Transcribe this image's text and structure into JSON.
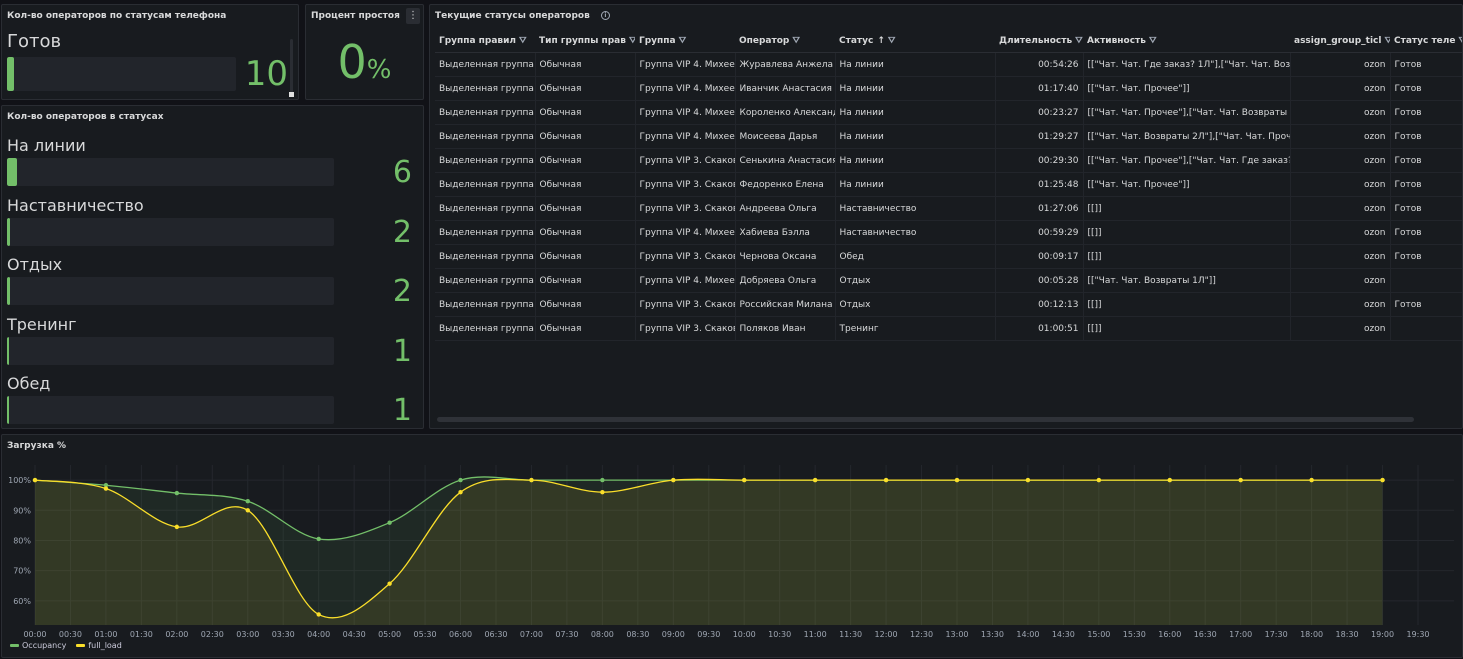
{
  "phone_status_panel": {
    "title": "Кол-во операторов по статусам телефона",
    "rows": [
      {
        "label": "Готов",
        "value": "10",
        "fraction": 0.03
      }
    ]
  },
  "idle_panel": {
    "title": "Процент простоя",
    "value": "0",
    "unit": "%",
    "menu_icon": "kebab-menu-icon"
  },
  "status_count_panel": {
    "title": "Кол-во операторов в статусах",
    "rows": [
      {
        "label": "На линии",
        "value": "6",
        "fraction": 0.03
      },
      {
        "label": "Наставничество",
        "value": "2",
        "fraction": 0.01
      },
      {
        "label": "Отдых",
        "value": "2",
        "fraction": 0.01
      },
      {
        "label": "Тренинг",
        "value": "1",
        "fraction": 0.005
      },
      {
        "label": "Обед",
        "value": "1",
        "fraction": 0.005
      }
    ]
  },
  "operators_table": {
    "title": "Текущие статусы операторов",
    "info_icon": "info-icon",
    "columns": [
      "Группа правил",
      "Тип группы прав",
      "Группа",
      "Оператор",
      "Статус",
      "Длительность",
      "Активность",
      "assign_group_ticl",
      "Статус теле"
    ],
    "sort_indicator": "↑",
    "rows": [
      [
        "Выделенная группа",
        "Обычная",
        "Группа VIP 4. Михее",
        "Журавлева Анжела",
        "На линии",
        "00:54:26",
        "[[\"Чат. Чат. Где заказ? 1Л\"],[\"Чат. Чат. Возвра",
        "ozon",
        "Готов"
      ],
      [
        "Выделенная группа",
        "Обычная",
        "Группа VIP 4. Михее",
        "Иванчик Анастасия",
        "На линии",
        "01:17:40",
        "[[\"Чат. Чат. Прочее\"]]",
        "ozon",
        "Готов"
      ],
      [
        "Выделенная группа",
        "Обычная",
        "Группа VIP 4. Михее",
        "Короленко Александ",
        "На линии",
        "00:23:27",
        "[[\"Чат. Чат. Прочее\"],[\"Чат. Чат. Возвраты 2",
        "ozon",
        "Готов"
      ],
      [
        "Выделенная группа",
        "Обычная",
        "Группа VIP 4. Михее",
        "Моисеева Дарья",
        "На линии",
        "01:29:27",
        "[[\"Чат. Чат. Возвраты 2Л\"],[\"Чат. Чат. Проче",
        "ozon",
        "Готов"
      ],
      [
        "Выделенная группа",
        "Обычная",
        "Группа VIP 3. Скаков",
        "Сенькина Анастасия",
        "На линии",
        "00:29:30",
        "[[\"Чат. Чат. Прочее\"],[\"Чат. Чат. Где заказ?",
        "ozon",
        "Готов"
      ],
      [
        "Выделенная группа",
        "Обычная",
        "Группа VIP 3. Скаков",
        "Федоренко Елена",
        "На линии",
        "01:25:48",
        "[[\"Чат. Чат. Прочее\"]]",
        "ozon",
        "Готов"
      ],
      [
        "Выделенная группа",
        "Обычная",
        "Группа VIP 3. Скаков",
        "Андреева Ольга",
        "Наставничество",
        "01:27:06",
        "[[]]",
        "ozon",
        "Готов"
      ],
      [
        "Выделенная группа",
        "Обычная",
        "Группа VIP 4. Михее",
        "Хабиева Бэлла",
        "Наставничество",
        "00:59:29",
        "[[]]",
        "ozon",
        "Готов"
      ],
      [
        "Выделенная группа",
        "Обычная",
        "Группа VIP 3. Скаков",
        "Чернова Оксана",
        "Обед",
        "00:09:17",
        "[[]]",
        "ozon",
        "Готов"
      ],
      [
        "Выделенная группа",
        "Обычная",
        "Группа VIP 4. Михее",
        "Добряева Ольга",
        "Отдых",
        "00:05:28",
        "[[\"Чат. Чат. Возвраты 1Л\"]]",
        "ozon",
        ""
      ],
      [
        "Выделенная группа",
        "Обычная",
        "Группа VIP 3. Скаков",
        "Российская Милана",
        "Отдых",
        "00:12:13",
        "[[]]",
        "ozon",
        "Готов"
      ],
      [
        "Выделенная группа",
        "Обычная",
        "Группа VIP 3. Скаков",
        "Поляков Иван",
        "Тренинг",
        "01:00:51",
        "[[]]",
        "ozon",
        ""
      ]
    ]
  },
  "load_panel": {
    "title": "Загрузка %"
  },
  "chart_data": {
    "type": "line",
    "title": "Загрузка %",
    "x": [
      "00:00",
      "00:30",
      "01:00",
      "01:30",
      "02:00",
      "02:30",
      "03:00",
      "03:30",
      "04:00",
      "04:30",
      "05:00",
      "05:30",
      "06:00",
      "06:30",
      "07:00",
      "07:30",
      "08:00",
      "08:30",
      "09:00",
      "09:30",
      "10:00",
      "10:30",
      "11:00",
      "11:30",
      "12:00",
      "12:30",
      "13:00",
      "13:30",
      "14:00",
      "14:30",
      "15:00",
      "15:30",
      "16:00",
      "16:30",
      "17:00",
      "17:30",
      "18:00",
      "18:30",
      "19:00",
      "19:30"
    ],
    "yticks": [
      "60%",
      "70%",
      "80%",
      "90%",
      "100%"
    ],
    "ylim": [
      52,
      105
    ],
    "series": [
      {
        "name": "Occupancy",
        "color": "#73bf69",
        "points": [
          [
            "00:00",
            100
          ],
          [
            "01:00",
            98.3
          ],
          [
            "02:00",
            95.7
          ],
          [
            "03:00",
            93.0
          ],
          [
            "04:00",
            80.5
          ],
          [
            "05:00",
            85.9
          ],
          [
            "06:00",
            100
          ],
          [
            "07:00",
            100
          ],
          [
            "08:00",
            100
          ],
          [
            "09:00",
            100
          ],
          [
            "10:00",
            100
          ],
          [
            "11:00",
            100
          ],
          [
            "12:00",
            100
          ],
          [
            "13:00",
            100
          ],
          [
            "14:00",
            100
          ],
          [
            "15:00",
            100
          ],
          [
            "16:00",
            100
          ],
          [
            "17:00",
            100
          ],
          [
            "18:00",
            100
          ],
          [
            "19:00",
            100
          ]
        ]
      },
      {
        "name": "full_load",
        "color": "#fade2a",
        "points": [
          [
            "00:00",
            100
          ],
          [
            "01:00",
            97.2
          ],
          [
            "02:00",
            84.5
          ],
          [
            "03:00",
            90.0
          ],
          [
            "04:00",
            55.5
          ],
          [
            "05:00",
            65.7
          ],
          [
            "06:00",
            96.0
          ],
          [
            "07:00",
            100
          ],
          [
            "08:00",
            96.0
          ],
          [
            "09:00",
            100
          ],
          [
            "10:00",
            100
          ],
          [
            "11:00",
            100
          ],
          [
            "12:00",
            100
          ],
          [
            "13:00",
            100
          ],
          [
            "14:00",
            100
          ],
          [
            "15:00",
            100
          ],
          [
            "16:00",
            100
          ],
          [
            "17:00",
            100
          ],
          [
            "18:00",
            100
          ],
          [
            "19:00",
            100
          ]
        ]
      }
    ],
    "legend_placement": "bottom-left",
    "grid": true
  }
}
